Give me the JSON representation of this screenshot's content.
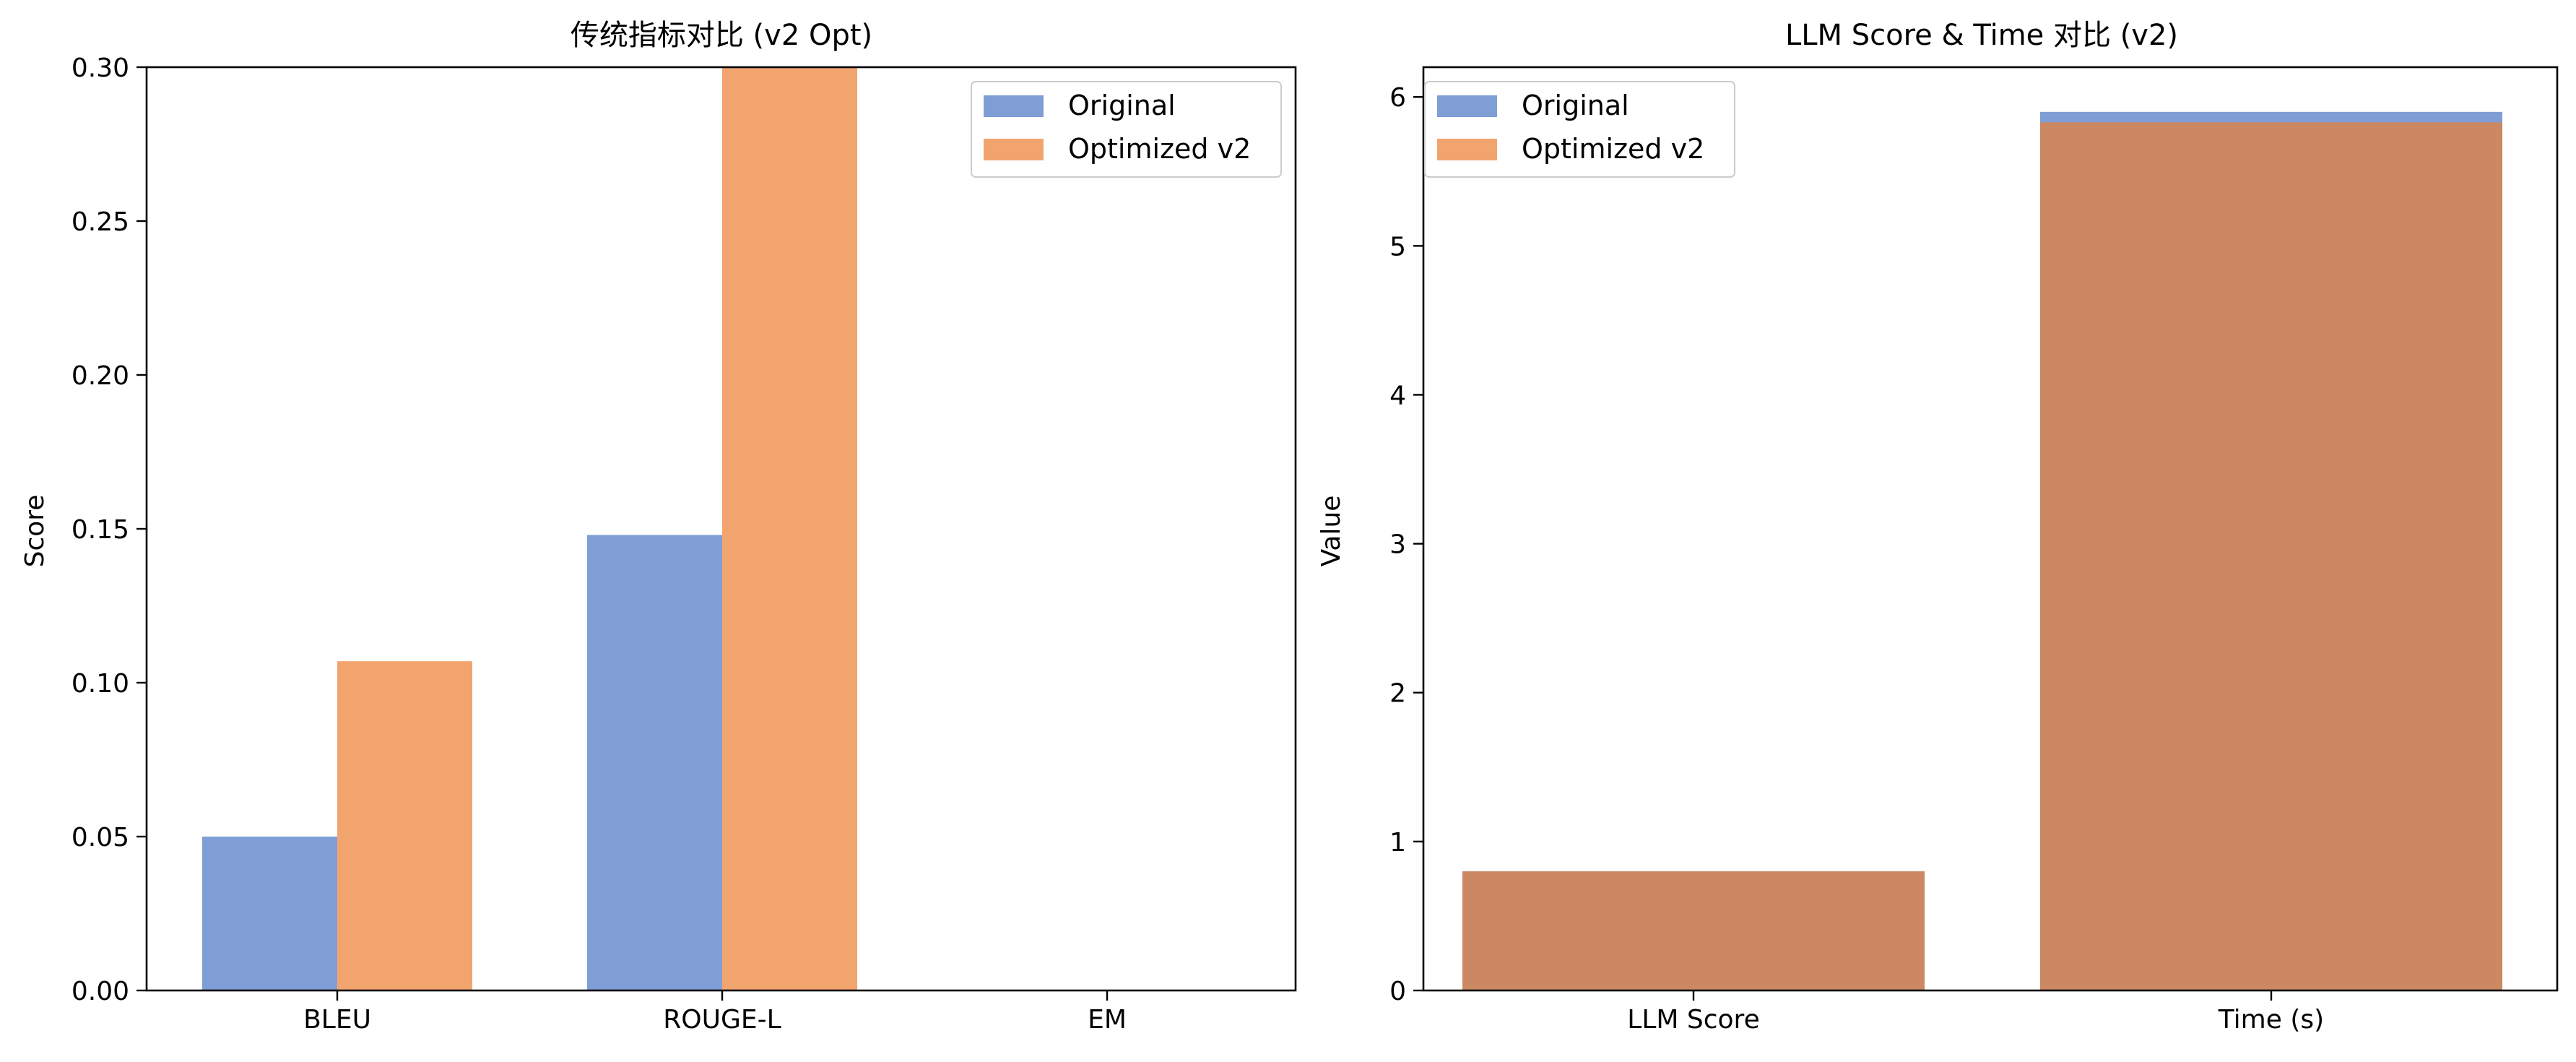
{
  "colors": {
    "original": "#7f9ed6",
    "optimized": "#f2a46f",
    "overlap": "#cb8862"
  },
  "chart_data": [
    {
      "type": "bar",
      "title": "传统指标对比 (v2 Opt)",
      "xlabel": "",
      "ylabel": "Score",
      "categories": [
        "BLEU",
        "ROUGE-L",
        "EM"
      ],
      "series": [
        {
          "name": "Original",
          "values": [
            0.05,
            0.148,
            0.0
          ]
        },
        {
          "name": "Optimized v2",
          "values": [
            0.107,
            0.3,
            0.0
          ]
        }
      ],
      "ylim": [
        0,
        0.3
      ],
      "yticks": [
        "0.00",
        "0.05",
        "0.10",
        "0.15",
        "0.20",
        "0.25",
        "0.30"
      ],
      "bar_layout": "grouped",
      "legend": "top-right",
      "grid": false
    },
    {
      "type": "bar",
      "title": "LLM Score & Time 对比 (v2)",
      "xlabel": "",
      "ylabel": "Value",
      "categories": [
        "LLM Score",
        "Time (s)"
      ],
      "series": [
        {
          "name": "Original",
          "values": [
            0.8,
            5.9
          ]
        },
        {
          "name": "Optimized v2",
          "values": [
            0.8,
            5.83
          ]
        }
      ],
      "ylim": [
        0,
        6.2
      ],
      "yticks": [
        "0",
        "1",
        "2",
        "3",
        "4",
        "5",
        "6"
      ],
      "bar_layout": "overlaid",
      "legend": "top-left",
      "grid": false
    }
  ]
}
